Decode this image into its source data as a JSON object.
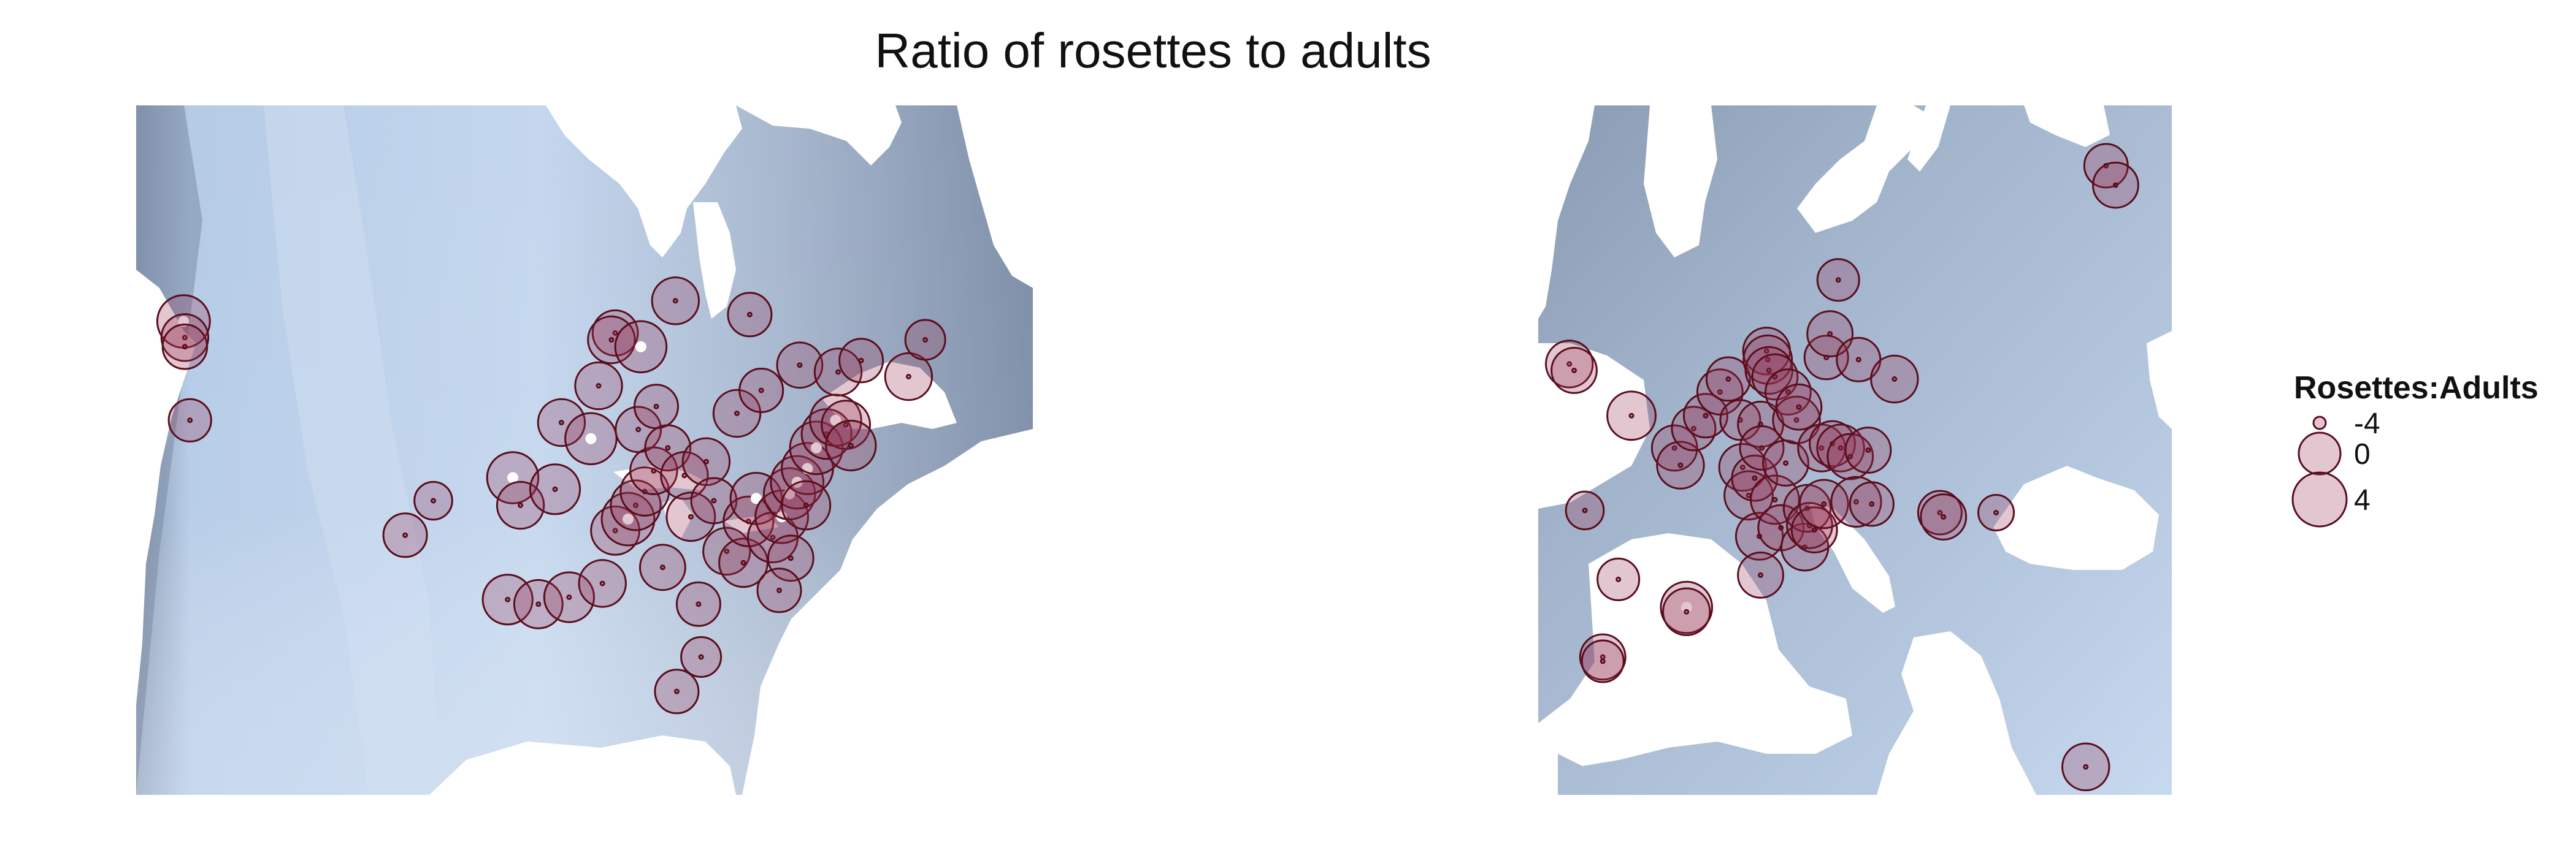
{
  "title": "Ratio of rosettes to adults",
  "legend": {
    "title": "Rosettes:Adults",
    "items": [
      {
        "label": "-4",
        "value": -4
      },
      {
        "label": "0",
        "value": 0
      },
      {
        "label": "4",
        "value": 4
      }
    ]
  },
  "colors": {
    "point_fill": "#96375599",
    "point_stroke": "#5a0d1c",
    "raster_light": "#bcd2ea",
    "raster_dark": "#6d7f99"
  },
  "chart_data": {
    "type": "scatter",
    "title": "Ratio of rosettes to adults",
    "legend_title": "Rosettes:Adults",
    "legend_position": "right",
    "size_variable": "Rosettes:Adults ratio",
    "size_range": [
      -4,
      4
    ],
    "regions": [
      {
        "name": "North America",
        "lon_range": [
          -128,
          -58
        ],
        "lat_range": [
          27,
          57
        ],
        "points": [
          {
            "lon": -124.3,
            "lat": 47.6,
            "ratio": 3.5
          },
          {
            "lon": -124.2,
            "lat": 46.9,
            "ratio": 1.5
          },
          {
            "lon": -124.2,
            "lat": 46.5,
            "ratio": 0.8
          },
          {
            "lon": -123.8,
            "lat": 43.3,
            "ratio": 0.2
          },
          {
            "lon": -107.0,
            "lat": 38.3,
            "ratio": 0.5
          },
          {
            "lon": -104.8,
            "lat": 39.8,
            "ratio": -1.0
          },
          {
            "lon": -98.6,
            "lat": 40.8,
            "ratio": 3.0
          },
          {
            "lon": -98.0,
            "lat": 39.6,
            "ratio": 1.5
          },
          {
            "lon": -99.0,
            "lat": 35.5,
            "ratio": 2.5
          },
          {
            "lon": -96.6,
            "lat": 35.3,
            "ratio": 2.0
          },
          {
            "lon": -95.3,
            "lat": 40.3,
            "ratio": 2.5
          },
          {
            "lon": -94.8,
            "lat": 43.2,
            "ratio": 1.5
          },
          {
            "lon": -92.5,
            "lat": 42.5,
            "ratio": 3.0
          },
          {
            "lon": -91.9,
            "lat": 44.8,
            "ratio": 1.5
          },
          {
            "lon": -94.2,
            "lat": 35.6,
            "ratio": 2.5
          },
          {
            "lon": -91.6,
            "lat": 36.2,
            "ratio": 1.5
          },
          {
            "lon": -90.6,
            "lat": 38.5,
            "ratio": 2.0
          },
          {
            "lon": -89.6,
            "lat": 39.0,
            "ratio": 3.5
          },
          {
            "lon": -89.0,
            "lat": 39.6,
            "ratio": 2.5
          },
          {
            "lon": -88.3,
            "lat": 40.2,
            "ratio": 2.0
          },
          {
            "lon": -87.6,
            "lat": 41.1,
            "ratio": 1.5
          },
          {
            "lon": -88.8,
            "lat": 42.9,
            "ratio": 1.0
          },
          {
            "lon": -87.4,
            "lat": 43.9,
            "ratio": 0.5
          },
          {
            "lon": -86.5,
            "lat": 42.1,
            "ratio": 1.0
          },
          {
            "lon": -85.2,
            "lat": 40.9,
            "ratio": 1.5
          },
          {
            "lon": -84.7,
            "lat": 39.1,
            "ratio": 2.0
          },
          {
            "lon": -83.5,
            "lat": 41.5,
            "ratio": 1.5
          },
          {
            "lon": -82.9,
            "lat": 39.8,
            "ratio": 1.0
          },
          {
            "lon": -86.9,
            "lat": 36.9,
            "ratio": 1.0
          },
          {
            "lon": -84.1,
            "lat": 35.3,
            "ratio": 0.5
          },
          {
            "lon": -83.9,
            "lat": 33.0,
            "ratio": -0.5
          },
          {
            "lon": -85.8,
            "lat": 31.5,
            "ratio": 0.5
          },
          {
            "lon": -81.9,
            "lat": 37.6,
            "ratio": 1.5
          },
          {
            "lon": -80.6,
            "lat": 37.1,
            "ratio": 2.0
          },
          {
            "lon": -80.2,
            "lat": 38.9,
            "ratio": 2.5
          },
          {
            "lon": -79.6,
            "lat": 39.9,
            "ratio": 3.0
          },
          {
            "lon": -78.3,
            "lat": 38.2,
            "ratio": 2.5
          },
          {
            "lon": -77.6,
            "lat": 39.1,
            "ratio": 3.5
          },
          {
            "lon": -77.0,
            "lat": 40.1,
            "ratio": 3.0
          },
          {
            "lon": -76.4,
            "lat": 40.6,
            "ratio": 3.5
          },
          {
            "lon": -75.6,
            "lat": 41.2,
            "ratio": 3.0
          },
          {
            "lon": -74.9,
            "lat": 42.1,
            "ratio": 3.5
          },
          {
            "lon": -74.1,
            "lat": 42.7,
            "ratio": 2.5
          },
          {
            "lon": -73.4,
            "lat": 43.3,
            "ratio": 3.0
          },
          {
            "lon": -72.6,
            "lat": 43.1,
            "ratio": 2.0
          },
          {
            "lon": -72.2,
            "lat": 42.2,
            "ratio": 2.5
          },
          {
            "lon": -75.7,
            "lat": 39.6,
            "ratio": 2.0
          },
          {
            "lon": -76.9,
            "lat": 37.3,
            "ratio": 1.0
          },
          {
            "lon": -77.8,
            "lat": 35.9,
            "ratio": 0.5
          },
          {
            "lon": -81.1,
            "lat": 43.6,
            "ratio": 1.5
          },
          {
            "lon": -79.2,
            "lat": 44.6,
            "ratio": 0.5
          },
          {
            "lon": -76.2,
            "lat": 45.7,
            "ratio": 1.0
          },
          {
            "lon": -73.2,
            "lat": 45.4,
            "ratio": 1.5
          },
          {
            "lon": -71.4,
            "lat": 45.9,
            "ratio": 0.5
          },
          {
            "lon": -67.7,
            "lat": 45.2,
            "ratio": 1.5
          },
          {
            "lon": -66.4,
            "lat": 46.8,
            "ratio": -0.5
          },
          {
            "lon": -80.1,
            "lat": 47.9,
            "ratio": 0.5
          },
          {
            "lon": -85.9,
            "lat": 48.5,
            "ratio": 1.5
          },
          {
            "lon": -90.6,
            "lat": 47.1,
            "ratio": 1.0
          },
          {
            "lon": -90.9,
            "lat": 46.8,
            "ratio": 1.5
          },
          {
            "lon": -88.6,
            "lat": 46.5,
            "ratio": 3.0
          }
        ]
      },
      {
        "name": "Europe",
        "lon_range": [
          -11,
          42
        ],
        "lat_range": [
          34,
          66
        ],
        "points": [
          {
            "lon": -8.4,
            "lat": 54.0,
            "ratio": 1.5
          },
          {
            "lon": -8.0,
            "lat": 53.7,
            "ratio": 1.0
          },
          {
            "lon": -3.2,
            "lat": 51.6,
            "ratio": 2.0
          },
          {
            "lon": -7.1,
            "lat": 47.2,
            "ratio": -1.0
          },
          {
            "lon": -4.3,
            "lat": 44.0,
            "ratio": 0.0
          },
          {
            "lon": -5.6,
            "lat": 40.4,
            "ratio": 1.0
          },
          {
            "lon": -5.6,
            "lat": 40.2,
            "ratio": 0.0
          },
          {
            "lon": 0.4,
            "lat": 50.1,
            "ratio": 1.0
          },
          {
            "lon": 0.9,
            "lat": 49.3,
            "ratio": 1.5
          },
          {
            "lon": 1.4,
            "lat": 42.7,
            "ratio": 3.0
          },
          {
            "lon": 1.4,
            "lat": 42.5,
            "ratio": 1.5
          },
          {
            "lon": 2.0,
            "lat": 51.0,
            "ratio": 0.5
          },
          {
            "lon": 3.0,
            "lat": 51.6,
            "ratio": 0.5
          },
          {
            "lon": 4.2,
            "lat": 52.7,
            "ratio": 1.0
          },
          {
            "lon": 4.9,
            "lat": 53.3,
            "ratio": 0.5
          },
          {
            "lon": 5.9,
            "lat": 51.4,
            "ratio": -0.5
          },
          {
            "lon": 6.1,
            "lat": 49.2,
            "ratio": 1.5
          },
          {
            "lon": 6.6,
            "lat": 47.9,
            "ratio": 2.0
          },
          {
            "lon": 7.1,
            "lat": 48.7,
            "ratio": 1.0
          },
          {
            "lon": 7.5,
            "lat": 46.0,
            "ratio": 1.5
          },
          {
            "lon": 7.6,
            "lat": 44.2,
            "ratio": 1.0
          },
          {
            "lon": 7.6,
            "lat": 51.2,
            "ratio": 1.0
          },
          {
            "lon": 7.7,
            "lat": 50.1,
            "ratio": 0.5
          },
          {
            "lon": 8.1,
            "lat": 54.6,
            "ratio": 1.5
          },
          {
            "lon": 8.2,
            "lat": 54.2,
            "ratio": 2.0
          },
          {
            "lon": 8.3,
            "lat": 53.7,
            "ratio": 1.5
          },
          {
            "lon": 8.8,
            "lat": 53.4,
            "ratio": 1.0
          },
          {
            "lon": 8.8,
            "lat": 47.7,
            "ratio": 2.0
          },
          {
            "lon": 9.3,
            "lat": 46.4,
            "ratio": 1.0
          },
          {
            "lon": 9.7,
            "lat": 49.4,
            "ratio": 1.0
          },
          {
            "lon": 9.9,
            "lat": 52.7,
            "ratio": 1.0
          },
          {
            "lon": 10.6,
            "lat": 51.4,
            "ratio": 1.5
          },
          {
            "lon": 10.8,
            "lat": 52.0,
            "ratio": 1.0
          },
          {
            "lon": 11.3,
            "lat": 45.5,
            "ratio": 1.5
          },
          {
            "lon": 11.5,
            "lat": 47.3,
            "ratio": 1.5
          },
          {
            "lon": 11.7,
            "lat": 46.5,
            "ratio": 1.0
          },
          {
            "lon": 12.1,
            "lat": 46.3,
            "ratio": 1.0
          },
          {
            "lon": 12.7,
            "lat": 50.1,
            "ratio": 1.5
          },
          {
            "lon": 12.9,
            "lat": 47.5,
            "ratio": 2.0
          },
          {
            "lon": 13.6,
            "lat": 50.3,
            "ratio": 1.0
          },
          {
            "lon": 13.1,
            "lat": 54.3,
            "ratio": 0.5
          },
          {
            "lon": 13.4,
            "lat": 55.4,
            "ratio": 1.0
          },
          {
            "lon": 14.1,
            "lat": 57.9,
            "ratio": 0.0
          },
          {
            "lon": 14.3,
            "lat": 50.1,
            "ratio": 1.5
          },
          {
            "lon": 15.1,
            "lat": 49.7,
            "ratio": 1.0
          },
          {
            "lon": 15.6,
            "lat": 47.6,
            "ratio": 2.5
          },
          {
            "lon": 15.8,
            "lat": 54.2,
            "ratio": 0.5
          },
          {
            "lon": 16.6,
            "lat": 50.0,
            "ratio": 1.0
          },
          {
            "lon": 16.9,
            "lat": 47.5,
            "ratio": 0.5
          },
          {
            "lon": 18.8,
            "lat": 53.3,
            "ratio": 1.5
          },
          {
            "lon": 22.6,
            "lat": 47.1,
            "ratio": 0.5
          },
          {
            "lon": 22.9,
            "lat": 46.9,
            "ratio": 1.0
          },
          {
            "lon": 27.3,
            "lat": 47.1,
            "ratio": -1.5
          },
          {
            "lon": 36.5,
            "lat": 63.2,
            "ratio": 0.5
          },
          {
            "lon": 37.3,
            "lat": 62.3,
            "ratio": 1.0
          },
          {
            "lon": 34.8,
            "lat": 35.3,
            "ratio": 1.5
          }
        ]
      }
    ]
  }
}
